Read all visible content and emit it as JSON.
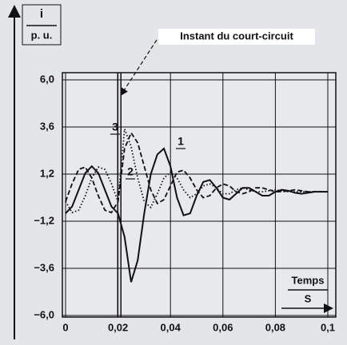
{
  "chart_data": {
    "type": "line",
    "ylabel_top": "i",
    "ylabel_bottom": "p. u.",
    "xlabel_top": "Temps",
    "xlabel_bottom": "S",
    "annotation": {
      "text": "Instant du court-circuit",
      "x": 0.0205
    },
    "x": [
      0,
      0.0025,
      0.005,
      0.0075,
      0.01,
      0.0125,
      0.015,
      0.0175,
      0.02,
      0.0225,
      0.025,
      0.0275,
      0.03,
      0.0325,
      0.035,
      0.0375,
      0.04,
      0.0425,
      0.045,
      0.0475,
      0.05,
      0.0525,
      0.055,
      0.0575,
      0.06,
      0.0625,
      0.065,
      0.0675,
      0.07,
      0.0725,
      0.075,
      0.0775,
      0.08,
      0.0825,
      0.085,
      0.0875,
      0.09,
      0.0925,
      0.095,
      0.0975,
      0.1
    ],
    "series": [
      {
        "name": "1",
        "color": "#111111",
        "dash": "solid",
        "values": [
          -0.8,
          -0.45,
          0.4,
          1.25,
          1.6,
          1.25,
          0.4,
          -0.45,
          -0.8,
          -2.0,
          -4.3,
          -3.2,
          -0.8,
          1.2,
          2.2,
          2.5,
          1.6,
          0.0,
          -0.9,
          -0.8,
          0.1,
          0.8,
          0.9,
          0.5,
          0.0,
          -0.1,
          0.2,
          0.5,
          0.5,
          0.3,
          0.1,
          0.1,
          0.3,
          0.4,
          0.35,
          0.25,
          0.2,
          0.25,
          0.3,
          0.3,
          0.3
        ]
      },
      {
        "name": "2",
        "color": "#111111",
        "dash": "dashed",
        "values": [
          -0.2,
          0.71,
          1.44,
          1.56,
          1.0,
          0.09,
          -0.64,
          -0.76,
          -0.2,
          2.5,
          3.3,
          2.8,
          1.6,
          0.4,
          -0.3,
          -0.1,
          0.6,
          1.3,
          1.4,
          1.0,
          0.4,
          0.0,
          0.1,
          0.5,
          0.7,
          0.6,
          0.3,
          0.2,
          0.3,
          0.5,
          0.5,
          0.4,
          0.3,
          0.3,
          0.35,
          0.4,
          0.35,
          0.3,
          0.3,
          0.3,
          0.3
        ]
      },
      {
        "name": "3",
        "color": "#111111",
        "dash": "dotted",
        "values": [
          -0.2,
          -0.76,
          -0.64,
          0.09,
          1.0,
          1.56,
          1.44,
          0.71,
          -0.2,
          3.5,
          2.6,
          1.0,
          -0.2,
          -0.5,
          0.2,
          1.0,
          1.3,
          1.0,
          0.4,
          0.0,
          0.2,
          0.6,
          0.7,
          0.5,
          0.2,
          0.2,
          0.4,
          0.5,
          0.4,
          0.3,
          0.3,
          0.35,
          0.4,
          0.35,
          0.3,
          0.3,
          0.3,
          0.3,
          0.3,
          0.3,
          0.3
        ]
      }
    ],
    "xlim": [
      0,
      0.1
    ],
    "xticks": [
      {
        "value": 0,
        "label": "0"
      },
      {
        "value": 0.02,
        "label": "0,02"
      },
      {
        "value": 0.04,
        "label": "0,04"
      },
      {
        "value": 0.06,
        "label": "0,06"
      },
      {
        "value": 0.08,
        "label": "0,08"
      },
      {
        "value": 0.1,
        "label": "0,1"
      }
    ],
    "ylim": [
      -6,
      6
    ],
    "yticks": [
      {
        "value": 6,
        "label": "6,0"
      },
      {
        "value": 3.6,
        "label": "3,6"
      },
      {
        "value": 1.2,
        "label": "1,2"
      },
      {
        "value": -1.2,
        "label": "−1,2"
      },
      {
        "value": -3.6,
        "label": "−3,6"
      },
      {
        "value": -6,
        "label": "−6,0"
      }
    ],
    "grid": true
  }
}
